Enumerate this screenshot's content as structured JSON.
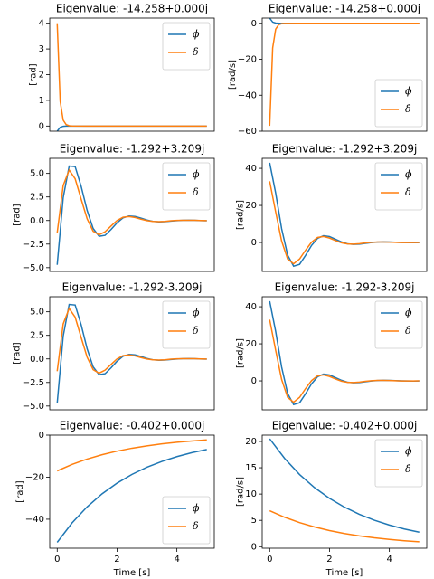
{
  "chart_data": [
    {
      "type": "line",
      "title": "Eigenvalue: -14.258+0.000j",
      "ylabel": "[rad]",
      "x": [
        0,
        0.1,
        0.2,
        0.3,
        0.4,
        0.5,
        1,
        2,
        3,
        4,
        5
      ],
      "xlim": [
        -0.25,
        5.25
      ],
      "ylim": [
        -0.2,
        4.2
      ],
      "yticks": [
        0,
        1,
        2,
        3,
        4
      ],
      "legend_loc": "upper right",
      "series": [
        {
          "name": "ϕ",
          "color": "#1f77b4",
          "values": [
            -0.2,
            -0.05,
            -0.01,
            0,
            0,
            0,
            0,
            0,
            0,
            0,
            0
          ]
        },
        {
          "name": "δ",
          "color": "#ff7f0e",
          "values": [
            4,
            0.96,
            0.23,
            0.055,
            0.013,
            0.003,
            0,
            0,
            0,
            0,
            0
          ]
        }
      ]
    },
    {
      "type": "line",
      "title": "Eigenvalue: -14.258+0.000j",
      "ylabel": "[rad/s]",
      "x": [
        0,
        0.1,
        0.2,
        0.3,
        0.4,
        0.5,
        1,
        2,
        3,
        4,
        5
      ],
      "xlim": [
        -0.25,
        5.25
      ],
      "ylim": [
        -60,
        2.9
      ],
      "yticks": [
        {
          "value": -60,
          "label": "−60"
        },
        {
          "value": -40,
          "label": "−40"
        },
        {
          "value": -20,
          "label": "−20"
        },
        0
      ],
      "legend_loc": "lower right",
      "series": [
        {
          "name": "ϕ̇",
          "color": "#1f77b4",
          "values": [
            2.85,
            0.68,
            0.16,
            0.04,
            0.01,
            0,
            0,
            0,
            0,
            0,
            0
          ]
        },
        {
          "name": "δ̇",
          "color": "#ff7f0e",
          "values": [
            -57,
            -13.7,
            -3.3,
            -0.79,
            -0.19,
            -0.05,
            0,
            0,
            0,
            0,
            0
          ]
        }
      ]
    },
    {
      "type": "line",
      "title": "Eigenvalue: -1.292+3.209j",
      "ylabel": "[rad]",
      "x": [
        0,
        0.2,
        0.4,
        0.6,
        0.8,
        1,
        1.2,
        1.4,
        1.6,
        1.8,
        2,
        2.2,
        2.4,
        2.6,
        2.8,
        3,
        3.2,
        3.4,
        3.6,
        3.8,
        4,
        4.2,
        4.4,
        4.6,
        4.8,
        5
      ],
      "xlim": [
        -0.25,
        5.25
      ],
      "ylim": [
        -5.4,
        6.6
      ],
      "yticks": [
        {
          "value": -5,
          "label": "−5.0"
        },
        {
          "value": -2.5,
          "label": "−2.5"
        },
        {
          "value": 0,
          "label": "0.0"
        },
        {
          "value": 2.5,
          "label": "2.5"
        },
        {
          "value": 5,
          "label": "5.0"
        }
      ],
      "legend_loc": "upper right",
      "series": [
        {
          "name": "ϕ",
          "color": "#1f77b4",
          "values": [
            -4.7,
            2.41,
            5.78,
            5.72,
            3.63,
            1.08,
            -0.84,
            -1.67,
            -1.57,
            -0.95,
            -0.24,
            0.28,
            0.48,
            0.43,
            0.25,
            0.05,
            -0.09,
            -0.14,
            -0.12,
            -0.06,
            -0.01,
            0.03,
            0.04,
            0.02,
            -0.01,
            -0.02
          ]
        },
        {
          "name": "δ",
          "color": "#ff7f0e",
          "values": [
            -1.3,
            3.71,
            5.36,
            4.43,
            2.28,
            0.18,
            -1.14,
            -1.51,
            -1.19,
            -0.58,
            0,
            0.35,
            0.42,
            0.32,
            0.14,
            -0.01,
            -0.1,
            -0.12,
            -0.09,
            -0.03,
            0.01,
            0.03,
            0.03,
            0.02,
            0,
            -0.01
          ]
        }
      ]
    },
    {
      "type": "line",
      "title": "Eigenvalue: -1.292+3.209j",
      "ylabel": "[rad/s]",
      "x": [
        0,
        0.2,
        0.4,
        0.6,
        0.8,
        1,
        1.2,
        1.4,
        1.6,
        1.8,
        2,
        2.2,
        2.4,
        2.6,
        2.8,
        3,
        3.2,
        3.4,
        3.6,
        3.8,
        4,
        4.2,
        4.4,
        4.6,
        4.8,
        5
      ],
      "xlim": [
        -0.25,
        5.25
      ],
      "ylim": [
        -15.6,
        45.4
      ],
      "yticks": [
        0,
        20,
        40
      ],
      "legend_loc": "upper right",
      "series": [
        {
          "name": "ϕ̇",
          "color": "#1f77b4",
          "values": [
            43,
            26.7,
            7.38,
            -6.78,
            -12.79,
            -11.8,
            -6.94,
            -1.59,
            2.21,
            3.67,
            3.22,
            1.77,
            0.31,
            -0.7,
            -1.04,
            -0.88,
            -0.45,
            -0.05,
            0.22,
            0.3,
            0.24,
            0.11,
            0,
            -0.06,
            -0.08,
            -0.06
          ]
        },
        {
          "name": "δ̇",
          "color": "#ff7f0e",
          "values": [
            33,
            16.5,
            0.75,
            -8.92,
            -11.49,
            -8.89,
            -4.13,
            0.16,
            2.69,
            3.22,
            2.39,
            1.01,
            -0.15,
            -0.8,
            -0.9,
            -0.64,
            -0.24,
            0.07,
            0.24,
            0.25,
            0.17,
            0.06,
            -0.03,
            -0.05,
            -0.04,
            -0.01
          ]
        }
      ]
    },
    {
      "type": "line",
      "title": "Eigenvalue: -1.292-3.209j",
      "ylabel": "[rad]",
      "x": [
        0,
        0.2,
        0.4,
        0.6,
        0.8,
        1,
        1.2,
        1.4,
        1.6,
        1.8,
        2,
        2.2,
        2.4,
        2.6,
        2.8,
        3,
        3.2,
        3.4,
        3.6,
        3.8,
        4,
        4.2,
        4.4,
        4.6,
        4.8,
        5
      ],
      "xlim": [
        -0.25,
        5.25
      ],
      "ylim": [
        -5.4,
        6.6
      ],
      "yticks": [
        {
          "value": -5,
          "label": "−5.0"
        },
        {
          "value": -2.5,
          "label": "−2.5"
        },
        {
          "value": 0,
          "label": "0.0"
        },
        {
          "value": 2.5,
          "label": "2.5"
        },
        {
          "value": 5,
          "label": "5.0"
        }
      ],
      "legend_loc": "upper right",
      "series": [
        {
          "name": "ϕ",
          "color": "#1f77b4",
          "values": [
            -4.7,
            2.41,
            5.78,
            5.72,
            3.63,
            1.08,
            -0.84,
            -1.67,
            -1.57,
            -0.95,
            -0.24,
            0.28,
            0.48,
            0.43,
            0.25,
            0.05,
            -0.09,
            -0.14,
            -0.12,
            -0.06,
            -0.01,
            0.03,
            0.04,
            0.02,
            -0.01,
            -0.02
          ]
        },
        {
          "name": "δ",
          "color": "#ff7f0e",
          "values": [
            -1.3,
            3.71,
            5.36,
            4.43,
            2.28,
            0.18,
            -1.14,
            -1.51,
            -1.19,
            -0.58,
            0,
            0.35,
            0.42,
            0.32,
            0.14,
            -0.01,
            -0.1,
            -0.12,
            -0.09,
            -0.03,
            0.01,
            0.03,
            0.03,
            0.02,
            0,
            -0.01
          ]
        }
      ]
    },
    {
      "type": "line",
      "title": "Eigenvalue: -1.292-3.209j",
      "ylabel": "[rad/s]",
      "x": [
        0,
        0.2,
        0.4,
        0.6,
        0.8,
        1,
        1.2,
        1.4,
        1.6,
        1.8,
        2,
        2.2,
        2.4,
        2.6,
        2.8,
        3,
        3.2,
        3.4,
        3.6,
        3.8,
        4,
        4.2,
        4.4,
        4.6,
        4.8,
        5
      ],
      "xlim": [
        -0.25,
        5.25
      ],
      "ylim": [
        -15.6,
        45.4
      ],
      "yticks": [
        0,
        20,
        40
      ],
      "legend_loc": "upper right",
      "series": [
        {
          "name": "ϕ̇",
          "color": "#1f77b4",
          "values": [
            43,
            26.7,
            7.38,
            -6.78,
            -12.79,
            -11.8,
            -6.94,
            -1.59,
            2.21,
            3.67,
            3.22,
            1.77,
            0.31,
            -0.7,
            -1.04,
            -0.88,
            -0.45,
            -0.05,
            0.22,
            0.3,
            0.24,
            0.11,
            0,
            -0.06,
            -0.08,
            -0.06
          ]
        },
        {
          "name": "δ̇",
          "color": "#ff7f0e",
          "values": [
            33,
            16.5,
            0.75,
            -8.92,
            -11.49,
            -8.89,
            -4.13,
            0.16,
            2.69,
            3.22,
            2.39,
            1.01,
            -0.15,
            -0.8,
            -0.9,
            -0.64,
            -0.24,
            0.07,
            0.24,
            0.25,
            0.17,
            0.06,
            -0.03,
            -0.05,
            -0.04,
            -0.01
          ]
        }
      ]
    },
    {
      "type": "line",
      "title": "Eigenvalue: -0.402+0.000j",
      "ylabel": "[rad]",
      "xlabel": "Time [s]",
      "x": [
        0,
        0.5,
        1,
        1.5,
        2,
        2.5,
        3,
        3.5,
        4,
        4.5,
        5
      ],
      "xlim": [
        -0.25,
        5.25
      ],
      "xticks": [
        0,
        2,
        4
      ],
      "ylim": [
        -53.8,
        0
      ],
      "yticks": [
        {
          "value": -40,
          "label": "−40"
        },
        {
          "value": -20,
          "label": "−20"
        },
        0
      ],
      "legend_loc": "lower right",
      "series": [
        {
          "name": "ϕ",
          "color": "#1f77b4",
          "values": [
            -51,
            -41.71,
            -34.12,
            -27.91,
            -22.83,
            -18.67,
            -15.27,
            -12.49,
            -10.22,
            -8.35,
            -6.83
          ]
        },
        {
          "name": "δ",
          "color": "#ff7f0e",
          "values": [
            -17,
            -13.9,
            -11.37,
            -9.3,
            -7.61,
            -6.22,
            -5.09,
            -4.16,
            -3.41,
            -2.78,
            -2.28
          ]
        }
      ]
    },
    {
      "type": "line",
      "title": "Eigenvalue: -0.402+0.000j",
      "ylabel": "[rad/s]",
      "xlabel": "Time [s]",
      "x": [
        0,
        0.5,
        1,
        1.5,
        2,
        2.5,
        3,
        3.5,
        4,
        4.5,
        5
      ],
      "xlim": [
        -0.25,
        5.25
      ],
      "xticks": [
        0,
        2,
        4
      ],
      "ylim": [
        -0.3,
        21.2
      ],
      "yticks": [
        0,
        5,
        10,
        15,
        20
      ],
      "legend_loc": "upper right",
      "series": [
        {
          "name": "ϕ̇",
          "color": "#1f77b4",
          "values": [
            20.5,
            16.77,
            13.71,
            11.22,
            9.18,
            7.51,
            6.14,
            5.02,
            4.11,
            3.36,
            2.75
          ]
        },
        {
          "name": "δ̇",
          "color": "#ff7f0e",
          "values": [
            6.83,
            5.59,
            4.57,
            3.74,
            3.06,
            2.5,
            2.04,
            1.67,
            1.37,
            1.12,
            0.92
          ]
        }
      ]
    }
  ]
}
